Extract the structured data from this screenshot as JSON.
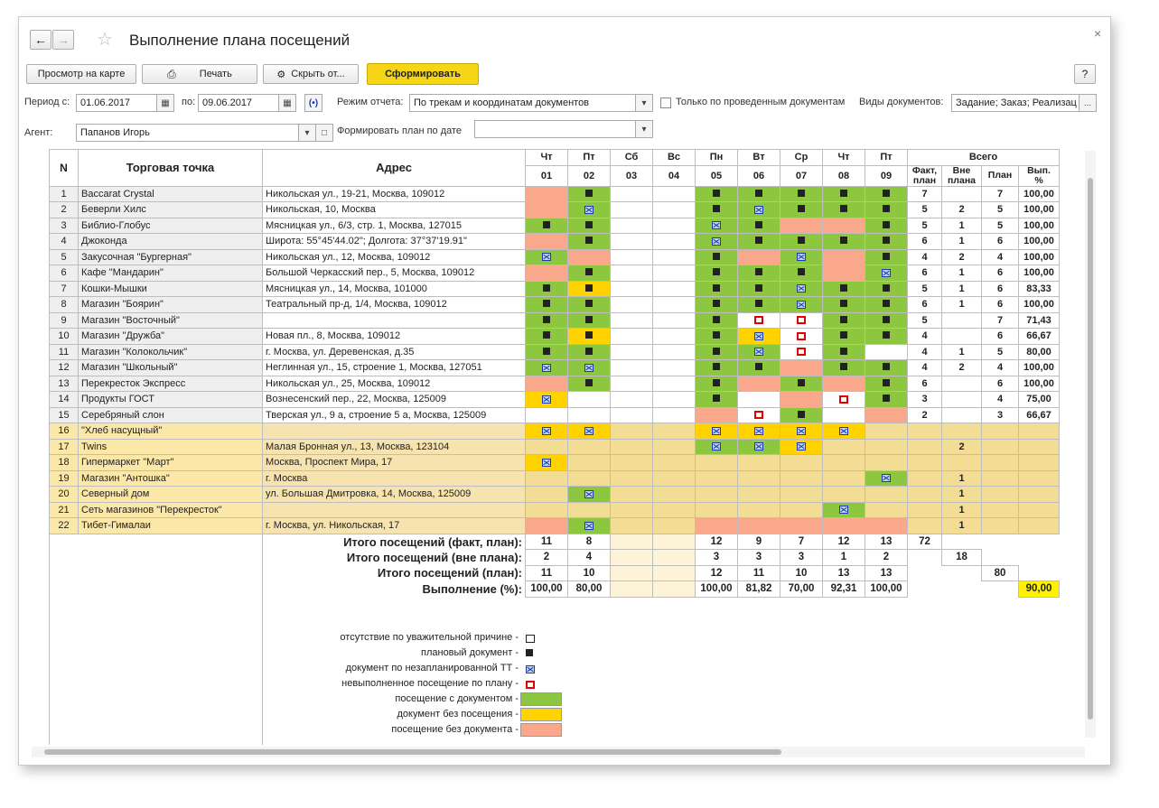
{
  "window": {
    "title": "Выполнение плана посещений",
    "close": "×"
  },
  "toolbar": {
    "map_label": "Просмотр на карте",
    "print_label": "Печать",
    "hide_label": "Скрыть от...",
    "generate_label": "Сформировать",
    "help_label": "?"
  },
  "filters": {
    "period_from_label": "Период с:",
    "period_from": "01.06.2017",
    "period_to_label": "по:",
    "period_to": "09.06.2017",
    "mode_label": "Режим отчета:",
    "mode_value": "По трекам и координатам документов",
    "only_posted_label": "Только по проведенным документам",
    "doc_types_label": "Виды документов:",
    "doc_types_value": "Задание; Заказ; Реализац",
    "agent_label": "Агент:",
    "agent_value": "Папанов Игорь",
    "plan_by_date_label": "Формировать план по дате",
    "plan_by_date_value": ""
  },
  "report": {
    "col_n": "N",
    "col_point": "Торговая точка",
    "col_address": "Адрес",
    "days": [
      {
        "dow": "Чт",
        "d": "01",
        "we": false
      },
      {
        "dow": "Пт",
        "d": "02",
        "we": false
      },
      {
        "dow": "Сб",
        "d": "03",
        "we": true
      },
      {
        "dow": "Вс",
        "d": "04",
        "we": true
      },
      {
        "dow": "Пн",
        "d": "05",
        "we": false
      },
      {
        "dow": "Вт",
        "d": "06",
        "we": false
      },
      {
        "dow": "Ср",
        "d": "07",
        "we": false
      },
      {
        "dow": "Чт",
        "d": "08",
        "we": false
      },
      {
        "dow": "Пт",
        "d": "09",
        "we": false
      }
    ],
    "total_header": "Всего",
    "total_cols": [
      "Факт, план",
      "Вне плана",
      "План",
      "Вып. %"
    ],
    "rows": [
      {
        "n": "1",
        "name": "Baccarat Crystal",
        "addr": "Никольская ул., 19-21, Москва, 109012",
        "t": "g",
        "cells": [
          "o",
          "g",
          "w",
          "w",
          "g:s",
          "g:s",
          "g:s",
          "g:s",
          "g:s"
        ],
        "cells_m": [
          "",
          "s",
          "",
          "",
          "s",
          "s",
          "s",
          "s",
          "s"
        ],
        "fact": "7",
        "out": "",
        "plan": "7",
        "pct": "100,00"
      },
      {
        "n": "2",
        "name": "Беверли Хилс",
        "addr": "Никольская, 10, Москва",
        "t": "g",
        "cells": [
          "o",
          "g",
          "w",
          "w",
          "g",
          "g",
          "g",
          "g",
          "g"
        ],
        "cells_m": [
          "",
          "x",
          "",
          "",
          "s",
          "x",
          "s",
          "s",
          "s"
        ],
        "fact": "5",
        "out": "2",
        "plan": "5",
        "pct": "100,00"
      },
      {
        "n": "3",
        "name": "Библио-Глобус",
        "addr": "Мясницкая ул., 6/3, стр. 1, Москва, 127015",
        "t": "g",
        "cells": [
          "g",
          "g",
          "w",
          "w",
          "g",
          "g",
          "o",
          "o",
          "g"
        ],
        "cells_m": [
          "s",
          "s",
          "",
          "",
          "x",
          "s",
          "",
          "",
          "s"
        ],
        "fact": "5",
        "out": "1",
        "plan": "5",
        "pct": "100,00"
      },
      {
        "n": "4",
        "name": "Джоконда",
        "addr": "Широта: 55°45'44.02\"; Долгота: 37°37'19.91\"",
        "t": "g",
        "cells": [
          "o",
          "g",
          "w",
          "w",
          "g",
          "g",
          "g",
          "g",
          "g"
        ],
        "cells_m": [
          "",
          "s",
          "",
          "",
          "x",
          "s",
          "s",
          "s",
          "s"
        ],
        "fact": "6",
        "out": "1",
        "plan": "6",
        "pct": "100,00"
      },
      {
        "n": "5",
        "name": "Закусочная \"Бургерная\"",
        "addr": "Никольская ул., 12, Москва, 109012",
        "t": "g",
        "cells": [
          "g",
          "o",
          "w",
          "w",
          "g",
          "o",
          "g",
          "o",
          "g"
        ],
        "cells_m": [
          "x",
          "",
          "",
          "",
          "s",
          "",
          "x",
          "",
          "s"
        ],
        "fact": "4",
        "out": "2",
        "plan": "4",
        "pct": "100,00"
      },
      {
        "n": "6",
        "name": "Кафе \"Мандарин\"",
        "addr": "Большой Черкасский пер., 5, Москва, 109012",
        "t": "g",
        "cells": [
          "o",
          "g",
          "w",
          "w",
          "g",
          "g",
          "g",
          "o",
          "g"
        ],
        "cells_m": [
          "",
          "s",
          "",
          "",
          "s",
          "s",
          "s",
          "",
          "x"
        ],
        "fact": "6",
        "out": "1",
        "plan": "6",
        "pct": "100,00"
      },
      {
        "n": "7",
        "name": "Кошки-Мышки",
        "addr": "Мясницкая ул., 14, Москва, 101000",
        "t": "g",
        "cells": [
          "g",
          "y",
          "w",
          "w",
          "g",
          "g",
          "g",
          "g",
          "g"
        ],
        "cells_m": [
          "s",
          "s",
          "",
          "",
          "s",
          "s",
          "x",
          "s",
          "s"
        ],
        "fact": "5",
        "out": "1",
        "plan": "6",
        "pct": "83,33"
      },
      {
        "n": "8",
        "name": "Магазин \"Боярин\"",
        "addr": "Театральный пр-д, 1/4, Москва, 109012",
        "t": "g",
        "cells": [
          "g",
          "g",
          "w",
          "w",
          "g",
          "g",
          "g",
          "g",
          "g"
        ],
        "cells_m": [
          "s",
          "s",
          "",
          "",
          "s",
          "s",
          "x",
          "s",
          "s"
        ],
        "fact": "6",
        "out": "1",
        "plan": "6",
        "pct": "100,00"
      },
      {
        "n": "9",
        "name": "Магазин \"Восточный\"",
        "addr": "",
        "t": "g",
        "cells": [
          "g",
          "g",
          "w",
          "w",
          "g",
          "w",
          "w",
          "g",
          "g"
        ],
        "cells_m": [
          "s",
          "s",
          "",
          "",
          "s",
          "r",
          "r",
          "s",
          "s"
        ],
        "fact": "5",
        "out": "",
        "plan": "7",
        "pct": "71,43"
      },
      {
        "n": "10",
        "name": "Магазин \"Дружба\"",
        "addr": "Новая пл., 8, Москва, 109012",
        "t": "g",
        "cells": [
          "g",
          "y",
          "w",
          "w",
          "g",
          "y",
          "w",
          "g",
          "g"
        ],
        "cells_m": [
          "s",
          "s",
          "",
          "",
          "s",
          "x",
          "r",
          "s",
          "s"
        ],
        "fact": "4",
        "out": "",
        "plan": "6",
        "pct": "66,67"
      },
      {
        "n": "11",
        "name": "Магазин \"Колокольчик\"",
        "addr": "г. Москва, ул. Деревенская, д.35",
        "t": "g",
        "cells": [
          "g",
          "g",
          "w",
          "w",
          "g",
          "g",
          "w",
          "g",
          "w"
        ],
        "cells_m": [
          "s",
          "s",
          "",
          "",
          "s",
          "x",
          "r",
          "s",
          ""
        ],
        "fact": "4",
        "out": "1",
        "plan": "5",
        "pct": "80,00"
      },
      {
        "n": "12",
        "name": "Магазин \"Школьный\"",
        "addr": "Неглинная ул., 15, строение 1, Москва, 127051",
        "t": "g",
        "cells": [
          "g",
          "g",
          "w",
          "w",
          "g",
          "g",
          "o",
          "g",
          "g"
        ],
        "cells_m": [
          "x",
          "x",
          "",
          "",
          "s",
          "s",
          "",
          "s",
          "s"
        ],
        "fact": "4",
        "out": "2",
        "plan": "4",
        "pct": "100,00"
      },
      {
        "n": "13",
        "name": "Перекресток Экспресс",
        "addr": "Никольская ул., 25, Москва, 109012",
        "t": "g",
        "cells": [
          "o",
          "g",
          "w",
          "w",
          "g",
          "o",
          "g",
          "o",
          "g"
        ],
        "cells_m": [
          "",
          "s",
          "",
          "",
          "s",
          "",
          "s",
          "",
          "s"
        ],
        "fact": "6",
        "out": "",
        "plan": "6",
        "pct": "100,00"
      },
      {
        "n": "14",
        "name": "Продукты ГОСТ",
        "addr": "Вознесенский пер., 22, Москва, 125009",
        "t": "g",
        "cells": [
          "y",
          "w",
          "w",
          "w",
          "g",
          "w",
          "o",
          "w",
          "g"
        ],
        "cells_m": [
          "x",
          "",
          "",
          "",
          "s",
          "",
          "",
          "r",
          "s"
        ],
        "fact": "3",
        "out": "",
        "plan": "4",
        "pct": "75,00"
      },
      {
        "n": "15",
        "name": "Серебряный слон",
        "addr": "Тверская ул., 9 а, строение 5 а, Москва, 125009",
        "t": "g",
        "cells": [
          "w",
          "w",
          "w",
          "w",
          "o",
          "w",
          "g",
          "w",
          "o"
        ],
        "cells_m": [
          "",
          "",
          "",
          "",
          "",
          "r",
          "s",
          "",
          ""
        ],
        "fact": "2",
        "out": "",
        "plan": "3",
        "pct": "66,67"
      },
      {
        "n": "16",
        "name": "\"Хлеб насущный\"",
        "addr": "",
        "t": "y",
        "cells": [
          "y",
          "y",
          "we",
          "we",
          "y",
          "y",
          "y",
          "y",
          "n"
        ],
        "cells_m": [
          "x",
          "x",
          "",
          "",
          "x",
          "x",
          "x",
          "x",
          ""
        ],
        "fact": "",
        "out": "",
        "plan": "",
        "pct": ""
      },
      {
        "n": "17",
        "name": "Twins",
        "addr": "Малая Бронная ул., 13, Москва, 123104",
        "t": "y",
        "cells": [
          "n",
          "n",
          "we",
          "we",
          "g",
          "g",
          "y",
          "n",
          "n"
        ],
        "cells_m": [
          "",
          "",
          "",
          "",
          "x",
          "x",
          "x",
          "",
          ""
        ],
        "fact": "",
        "out": "2",
        "plan": "",
        "pct": ""
      },
      {
        "n": "18",
        "name": "Гипермаркет \"Март\"",
        "addr": "Москва, Проспект Мира, 17",
        "t": "y",
        "cells": [
          "y",
          "n",
          "we",
          "we",
          "n",
          "n",
          "n",
          "n",
          "n"
        ],
        "cells_m": [
          "x",
          "",
          "",
          "",
          "",
          "",
          "",
          "",
          ""
        ],
        "fact": "",
        "out": "",
        "plan": "",
        "pct": ""
      },
      {
        "n": "19",
        "name": "Магазин \"Антошка\"",
        "addr": "г. Москва",
        "t": "y",
        "cells": [
          "n",
          "n",
          "we",
          "we",
          "n",
          "n",
          "n",
          "n",
          "g"
        ],
        "cells_m": [
          "",
          "",
          "",
          "",
          "",
          "",
          "",
          "",
          "x"
        ],
        "fact": "",
        "out": "1",
        "plan": "",
        "pct": ""
      },
      {
        "n": "20",
        "name": "Северный дом",
        "addr": "ул. Большая Дмитровка, 14, Москва, 125009",
        "t": "y",
        "cells": [
          "n",
          "g",
          "we",
          "we",
          "n",
          "n",
          "n",
          "n",
          "n"
        ],
        "cells_m": [
          "",
          "x",
          "",
          "",
          "",
          "",
          "",
          "",
          ""
        ],
        "fact": "",
        "out": "1",
        "plan": "",
        "pct": ""
      },
      {
        "n": "21",
        "name": "Сеть магазинов \"Перекресток\"",
        "addr": "",
        "t": "y",
        "cells": [
          "n",
          "n",
          "we",
          "we",
          "n",
          "n",
          "n",
          "g",
          "n"
        ],
        "cells_m": [
          "",
          "",
          "",
          "",
          "",
          "",
          "",
          "x",
          ""
        ],
        "fact": "",
        "out": "1",
        "plan": "",
        "pct": ""
      },
      {
        "n": "22",
        "name": "Тибет-Гималаи",
        "addr": "г. Москва, ул. Никольская, 17",
        "t": "y",
        "cells": [
          "o",
          "g",
          "we",
          "we",
          "o",
          "o",
          "o",
          "o",
          "o"
        ],
        "cells_m": [
          "",
          "x",
          "",
          "",
          "",
          "",
          "",
          "",
          ""
        ],
        "fact": "",
        "out": "1",
        "plan": "",
        "pct": ""
      }
    ],
    "totals": [
      {
        "label": "Итого посещений (факт, план):",
        "vals": [
          "11",
          "8",
          "",
          "",
          "12",
          "9",
          "7",
          "12",
          "13"
        ],
        "f": "72",
        "o": "",
        "p": "",
        "v": ""
      },
      {
        "label": "Итого посещений (вне плана):",
        "vals": [
          "2",
          "4",
          "",
          "",
          "3",
          "3",
          "3",
          "1",
          "2"
        ],
        "f": "",
        "o": "18",
        "p": "",
        "v": ""
      },
      {
        "label": "Итого посещений (план):",
        "vals": [
          "11",
          "10",
          "",
          "",
          "12",
          "11",
          "10",
          "13",
          "13"
        ],
        "f": "",
        "o": "",
        "p": "80",
        "v": ""
      },
      {
        "label": "Выполнение (%):",
        "vals": [
          "100,00",
          "80,00",
          "",
          "",
          "100,00",
          "81,82",
          "70,00",
          "92,31",
          "100,00"
        ],
        "f": "",
        "o": "",
        "p": "",
        "v": "90,00"
      }
    ],
    "legend": [
      {
        "text": "отсутствие по уважительной причине -",
        "kind": "ws"
      },
      {
        "text": "плановый документ -",
        "kind": "sq"
      },
      {
        "text": "документ по незапланированной ТТ -",
        "kind": "xm"
      },
      {
        "text": "невыполненное посещение по плану -",
        "kind": "rs"
      },
      {
        "text": "посещение с документом -",
        "kind": "g"
      },
      {
        "text": "документ без посещения -",
        "kind": "y"
      },
      {
        "text": "посещение без документа -",
        "kind": "o"
      }
    ]
  }
}
